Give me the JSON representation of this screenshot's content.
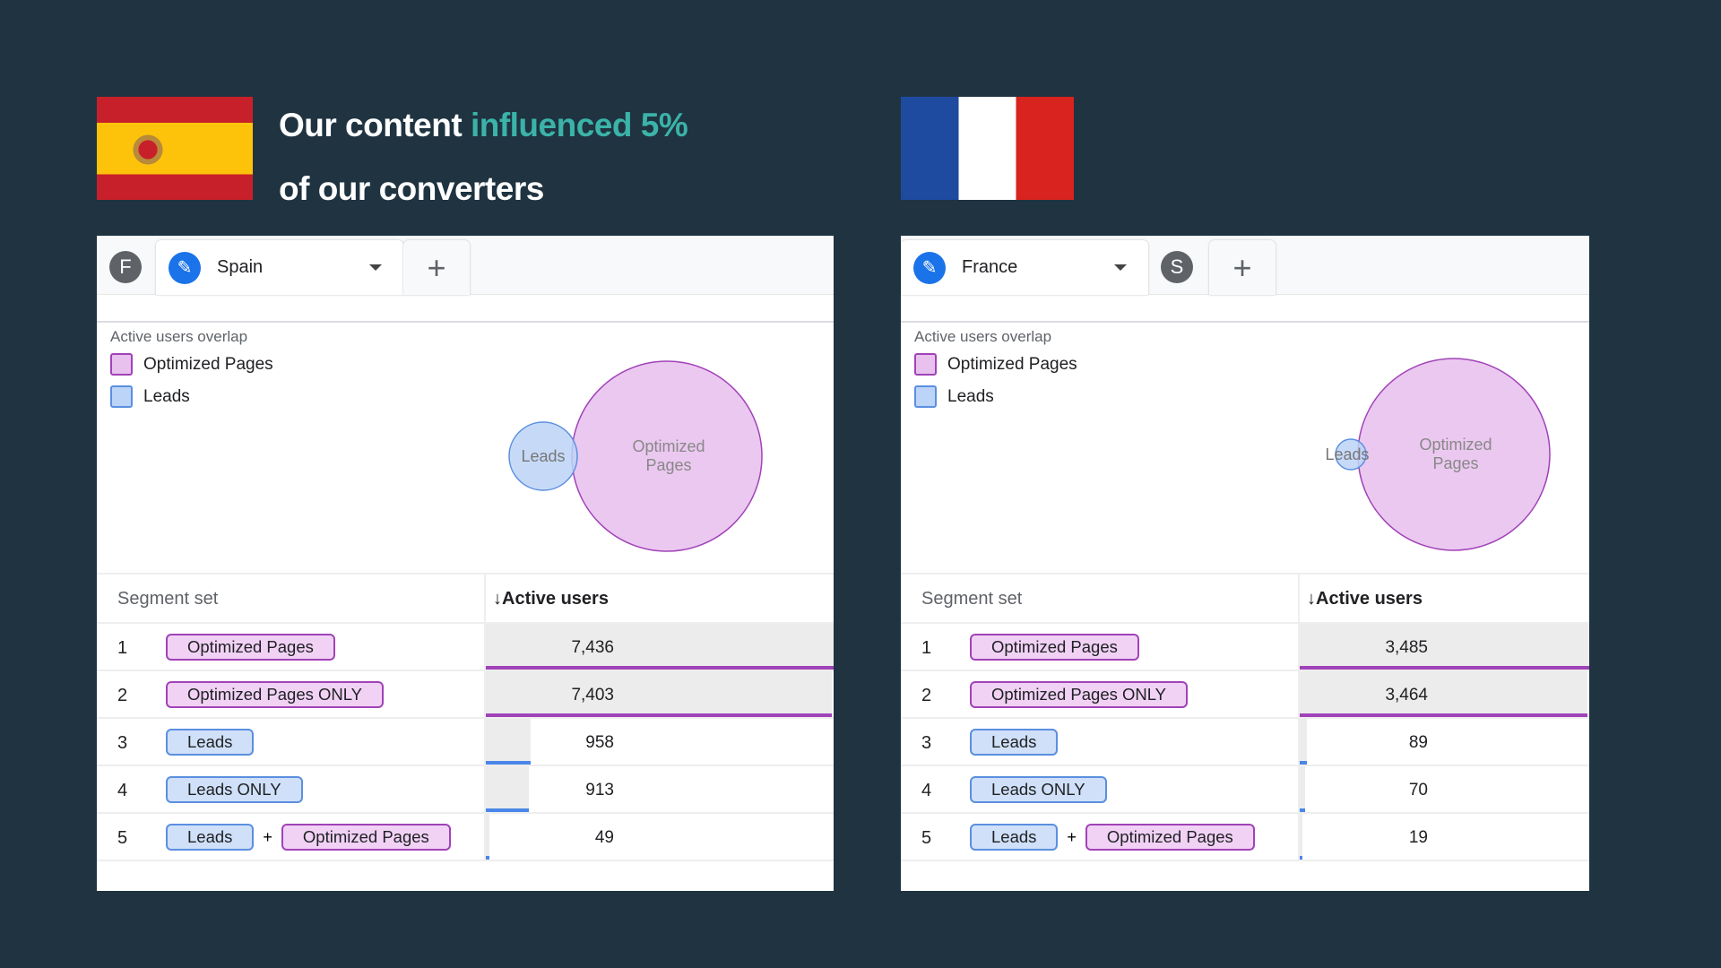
{
  "headline": {
    "line1_prefix": "Our content ",
    "line1_highlight": "influenced 5%",
    "line2": "of our converters"
  },
  "colors": {
    "background": "#1f3341",
    "highlight": "#3bb3a8",
    "optimized": "#a142b8",
    "optimized_fill": "#e8c1ee",
    "leads": "#5b8fe0",
    "leads_fill": "#bcd4f7"
  },
  "panels": [
    {
      "id": "es",
      "flag": "spain-flag",
      "tabs": {
        "left_letter": "F",
        "active": "Spain",
        "right_letter": null
      },
      "overlap_title": "Active users overlap",
      "legend": [
        "Optimized Pages",
        "Leads"
      ],
      "venn": {
        "leads_label": "Leads",
        "optimized_label_1": "Optimized",
        "optimized_label_2": "Pages"
      },
      "table": {
        "col1": "Segment set",
        "col2": "Active users",
        "rows": [
          {
            "n": "1",
            "chips": [
              {
                "label": "Optimized Pages",
                "type": "op"
              }
            ],
            "value": "7,436",
            "v": 7436
          },
          {
            "n": "2",
            "chips": [
              {
                "label": "Optimized Pages ONLY",
                "type": "op"
              }
            ],
            "value": "7,403",
            "v": 7403
          },
          {
            "n": "3",
            "chips": [
              {
                "label": "Leads",
                "type": "ld"
              }
            ],
            "value": "958",
            "v": 958
          },
          {
            "n": "4",
            "chips": [
              {
                "label": "Leads ONLY",
                "type": "ld"
              }
            ],
            "value": "913",
            "v": 913
          },
          {
            "n": "5",
            "chips": [
              {
                "label": "Leads",
                "type": "ld"
              },
              {
                "label": "Optimized Pages",
                "type": "op"
              }
            ],
            "value": "49",
            "v": 49
          }
        ]
      }
    },
    {
      "id": "fr",
      "flag": "france-flag",
      "tabs": {
        "left_letter": null,
        "active": "France",
        "right_letter": "S"
      },
      "overlap_title": "Active users overlap",
      "legend": [
        "Optimized Pages",
        "Leads"
      ],
      "venn": {
        "leads_label": "Leads",
        "optimized_label_1": "Optimized",
        "optimized_label_2": "Pages"
      },
      "table": {
        "col1": "Segment set",
        "col2": "Active users",
        "rows": [
          {
            "n": "1",
            "chips": [
              {
                "label": "Optimized Pages",
                "type": "op"
              }
            ],
            "value": "3,485",
            "v": 3485
          },
          {
            "n": "2",
            "chips": [
              {
                "label": "Optimized Pages ONLY",
                "type": "op"
              }
            ],
            "value": "3,464",
            "v": 3464
          },
          {
            "n": "3",
            "chips": [
              {
                "label": "Leads",
                "type": "ld"
              }
            ],
            "value": "89",
            "v": 89
          },
          {
            "n": "4",
            "chips": [
              {
                "label": "Leads ONLY",
                "type": "ld"
              }
            ],
            "value": "70",
            "v": 70
          },
          {
            "n": "5",
            "chips": [
              {
                "label": "Leads",
                "type": "ld"
              },
              {
                "label": "Optimized Pages",
                "type": "op"
              }
            ],
            "value": "19",
            "v": 19
          }
        ]
      }
    }
  ],
  "plus_sign": "+",
  "sort_arrow": "↓"
}
